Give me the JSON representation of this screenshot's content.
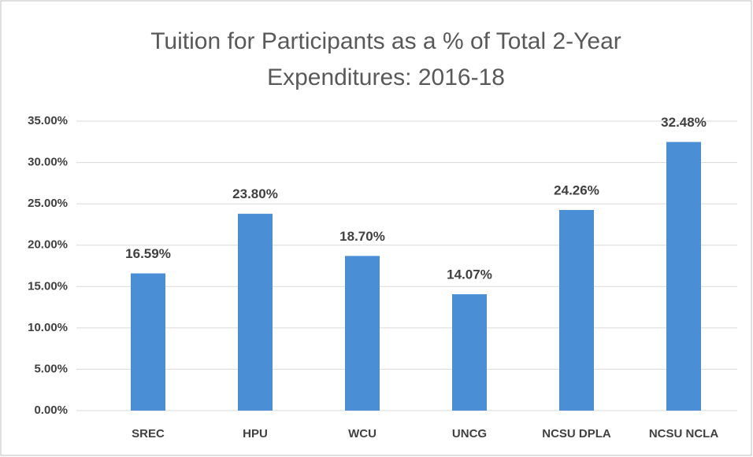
{
  "chart_data": {
    "type": "bar",
    "title": "Tuition for Participants as a % of Total 2-Year Expenditures: 2016-18",
    "categories": [
      "SREC",
      "HPU",
      "WCU",
      "UNCG",
      "NCSU DPLA",
      "NCSU NCLA"
    ],
    "values": [
      16.59,
      23.8,
      18.7,
      14.07,
      24.26,
      32.48
    ],
    "value_labels": [
      "16.59%",
      "23.80%",
      "18.70%",
      "14.07%",
      "24.26%",
      "32.48%"
    ],
    "color": "#4a8fd6",
    "ylim": [
      0,
      35
    ],
    "yticks": [
      {
        "value": 0,
        "label": "0.00%"
      },
      {
        "value": 5,
        "label": "5.00%"
      },
      {
        "value": 10,
        "label": "10.00%"
      },
      {
        "value": 15,
        "label": "15.00%"
      },
      {
        "value": 20,
        "label": "20.00%"
      },
      {
        "value": 25,
        "label": "25.00%"
      },
      {
        "value": 30,
        "label": "30.00%"
      },
      {
        "value": 35,
        "label": "35.00%"
      }
    ],
    "grid": true
  }
}
